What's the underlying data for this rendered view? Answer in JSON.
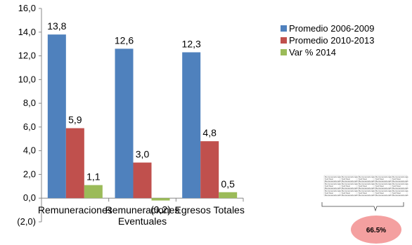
{
  "chart_data": {
    "type": "bar",
    "categories": [
      "Remuneraciones",
      "Remuneraciones\nEventuales",
      "Egresos Totales"
    ],
    "series": [
      {
        "name": "Promedio 2006-2009",
        "values": [
          13.8,
          12.6,
          12.3
        ],
        "labels": [
          "13,8",
          "12,6",
          "12,3"
        ]
      },
      {
        "name": "Promedio 2010-2013",
        "values": [
          5.9,
          3.0,
          4.8
        ],
        "labels": [
          "5,9",
          "3,0",
          "4,8"
        ]
      },
      {
        "name": "Var % 2014",
        "values": [
          1.1,
          -0.2,
          0.5
        ],
        "labels": [
          "1,1",
          "(0,2)",
          "0,5"
        ]
      }
    ],
    "colors": [
      "#4F81BD",
      "#C0504D",
      "#9BBB59"
    ],
    "ylim": [
      -2.0,
      16.0
    ],
    "yticks": [
      -2,
      0,
      2,
      4,
      6,
      8,
      10,
      12,
      14,
      16
    ],
    "ytick_labels": [
      "(2,0)",
      "0,0",
      "2,0",
      "4,0",
      "6,0",
      "8,0",
      "10,0",
      "12,0",
      "14,0",
      "16,0"
    ],
    "grid": false,
    "legend": "top-right",
    "title": "",
    "xlabel": "",
    "ylabel": ""
  },
  "inset": {
    "badge_value": "66.5%",
    "badge_color": "#F4A0A0",
    "cell_lines": [
      "Remuneraciones",
      "SubTotal",
      "Remuneraciones"
    ]
  }
}
